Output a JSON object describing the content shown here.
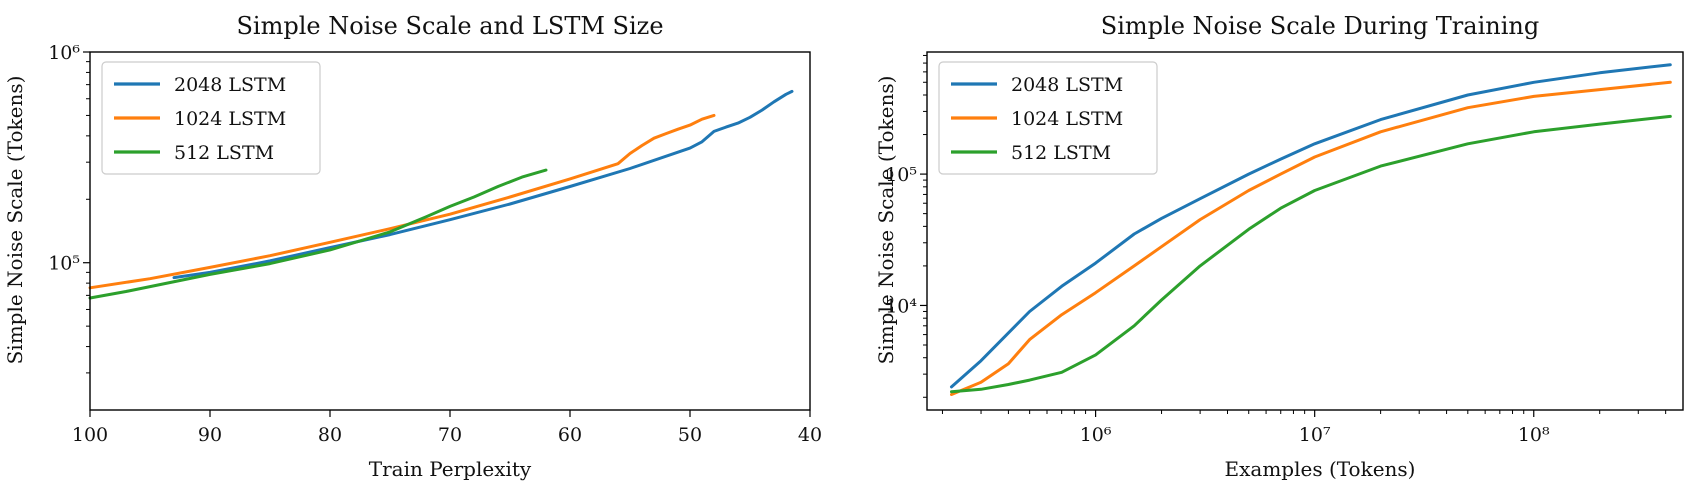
{
  "chart_data": [
    {
      "type": "line",
      "title": "Simple Noise Scale and LSTM Size",
      "xlabel": "Train Perplexity",
      "ylabel": "Simple Noise Scale (Tokens)",
      "x_scale": "linear",
      "x_reversed": true,
      "xlim": [
        100,
        40
      ],
      "y_scale": "log",
      "ylim": [
        20000,
        1000000
      ],
      "x_ticks": [
        100,
        90,
        80,
        70,
        60,
        50,
        40
      ],
      "y_ticks": [
        {
          "value": 100000,
          "label": "10⁵"
        },
        {
          "value": 1000000,
          "label": "10⁶"
        }
      ],
      "legend_position": "top-left",
      "grid": false,
      "series": [
        {
          "name": "2048 LSTM",
          "color": "#1f77b4",
          "x": [
            93,
            90,
            85,
            80,
            75,
            70,
            65,
            60,
            55,
            50,
            49,
            48,
            47,
            46,
            45,
            44,
            43,
            42,
            41.5
          ],
          "y": [
            85000,
            90000,
            102000,
            118000,
            136000,
            160000,
            190000,
            230000,
            280000,
            350000,
            375000,
            420000,
            440000,
            460000,
            490000,
            530000,
            580000,
            630000,
            650000
          ]
        },
        {
          "name": "1024 LSTM",
          "color": "#ff7f0e",
          "x": [
            100,
            95,
            90,
            85,
            80,
            75,
            70,
            65,
            60,
            56,
            55,
            54,
            53,
            52,
            51,
            50,
            49,
            48
          ],
          "y": [
            76000,
            84000,
            95000,
            108000,
            125000,
            145000,
            170000,
            205000,
            250000,
            295000,
            330000,
            360000,
            390000,
            410000,
            430000,
            450000,
            480000,
            500000
          ]
        },
        {
          "name": "512 LSTM",
          "color": "#2ca02c",
          "x": [
            100,
            97,
            95,
            90,
            85,
            80,
            75,
            72,
            70,
            68,
            66,
            64,
            62
          ],
          "y": [
            68000,
            73000,
            77000,
            88000,
            99000,
            115000,
            140000,
            165000,
            185000,
            205000,
            230000,
            255000,
            275000
          ]
        }
      ]
    },
    {
      "type": "line",
      "title": "Simple Noise Scale During Training",
      "xlabel": "Examples (Tokens)",
      "ylabel": "Simple Noise Scale (Tokens)",
      "x_scale": "log",
      "xlim": [
        170000,
        480000000
      ],
      "y_scale": "log",
      "ylim": [
        1600,
        850000
      ],
      "x_ticks": [
        {
          "value": 1000000,
          "label": "10⁶"
        },
        {
          "value": 10000000,
          "label": "10⁷"
        },
        {
          "value": 100000000,
          "label": "10⁸"
        }
      ],
      "y_ticks": [
        {
          "value": 10000,
          "label": "10⁴"
        },
        {
          "value": 100000,
          "label": "10⁵"
        }
      ],
      "legend_position": "top-left",
      "grid": false,
      "series": [
        {
          "name": "2048 LSTM",
          "color": "#1f77b4",
          "x": [
            220000,
            300000,
            500000,
            700000,
            1000000,
            1500000,
            2000000,
            3000000,
            5000000,
            7000000,
            10000000,
            20000000,
            50000000,
            100000000,
            200000000,
            420000000
          ],
          "y": [
            2400,
            3800,
            9000,
            14000,
            21000,
            35000,
            46000,
            65000,
            100000,
            130000,
            170000,
            260000,
            400000,
            500000,
            590000,
            680000
          ]
        },
        {
          "name": "1024 LSTM",
          "color": "#ff7f0e",
          "x": [
            220000,
            300000,
            400000,
            500000,
            700000,
            1000000,
            1500000,
            2000000,
            3000000,
            5000000,
            7000000,
            10000000,
            20000000,
            50000000,
            100000000,
            200000000,
            420000000
          ],
          "y": [
            2100,
            2600,
            3600,
            5500,
            8500,
            12500,
            20000,
            28000,
            45000,
            75000,
            100000,
            135000,
            210000,
            320000,
            390000,
            440000,
            500000
          ]
        },
        {
          "name": "512 LSTM",
          "color": "#2ca02c",
          "x": [
            220000,
            300000,
            400000,
            500000,
            700000,
            1000000,
            1500000,
            2000000,
            3000000,
            5000000,
            7000000,
            10000000,
            20000000,
            50000000,
            100000000,
            200000000,
            420000000
          ],
          "y": [
            2200,
            2300,
            2500,
            2700,
            3100,
            4200,
            7000,
            11000,
            20000,
            38000,
            55000,
            75000,
            115000,
            170000,
            210000,
            240000,
            275000
          ]
        }
      ]
    }
  ]
}
